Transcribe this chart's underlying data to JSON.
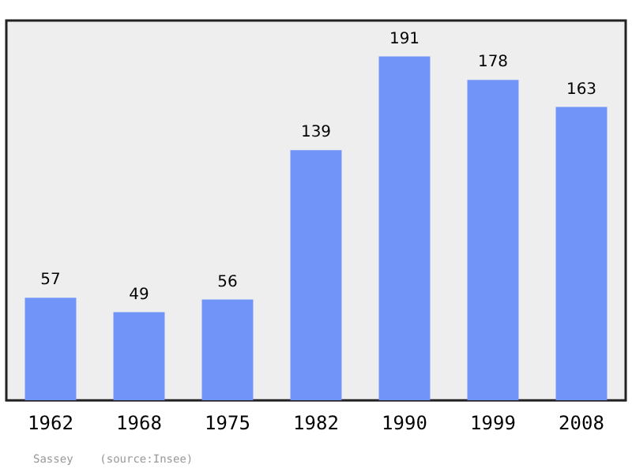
{
  "chart_data": {
    "type": "bar",
    "categories": [
      "1962",
      "1968",
      "1975",
      "1982",
      "1990",
      "1999",
      "2008"
    ],
    "values": [
      57,
      49,
      56,
      139,
      191,
      178,
      163
    ],
    "color": "#7094f8",
    "ylim": [
      0,
      211
    ],
    "data_labels": true,
    "legend": false,
    "annotations": [
      "Sassey    (source:Insee)"
    ]
  }
}
